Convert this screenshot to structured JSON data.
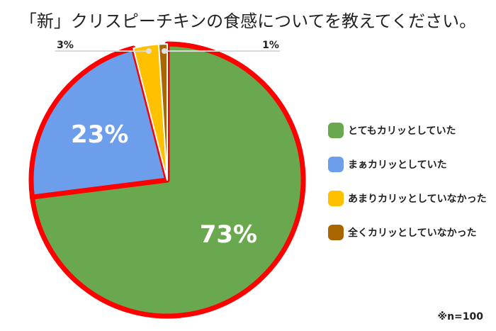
{
  "chart_data": {
    "type": "pie",
    "title": "「新」クリスピーチキンの食感についてを教えてください。",
    "categories": [
      "とてもカリッとしていた",
      "まぁカリッとしていた",
      "あまりカリッとしていなかった",
      "全くカリッとしていなかった"
    ],
    "values": [
      73,
      23,
      3,
      1
    ],
    "labels": [
      "73%",
      "23%",
      "3%",
      "1%"
    ],
    "colors": [
      "#6aa84f",
      "#6d9eeb",
      "#ffc000",
      "#a86500"
    ],
    "outline_color": "#ff0000",
    "legend_placement": "right",
    "note": "※n=100"
  }
}
